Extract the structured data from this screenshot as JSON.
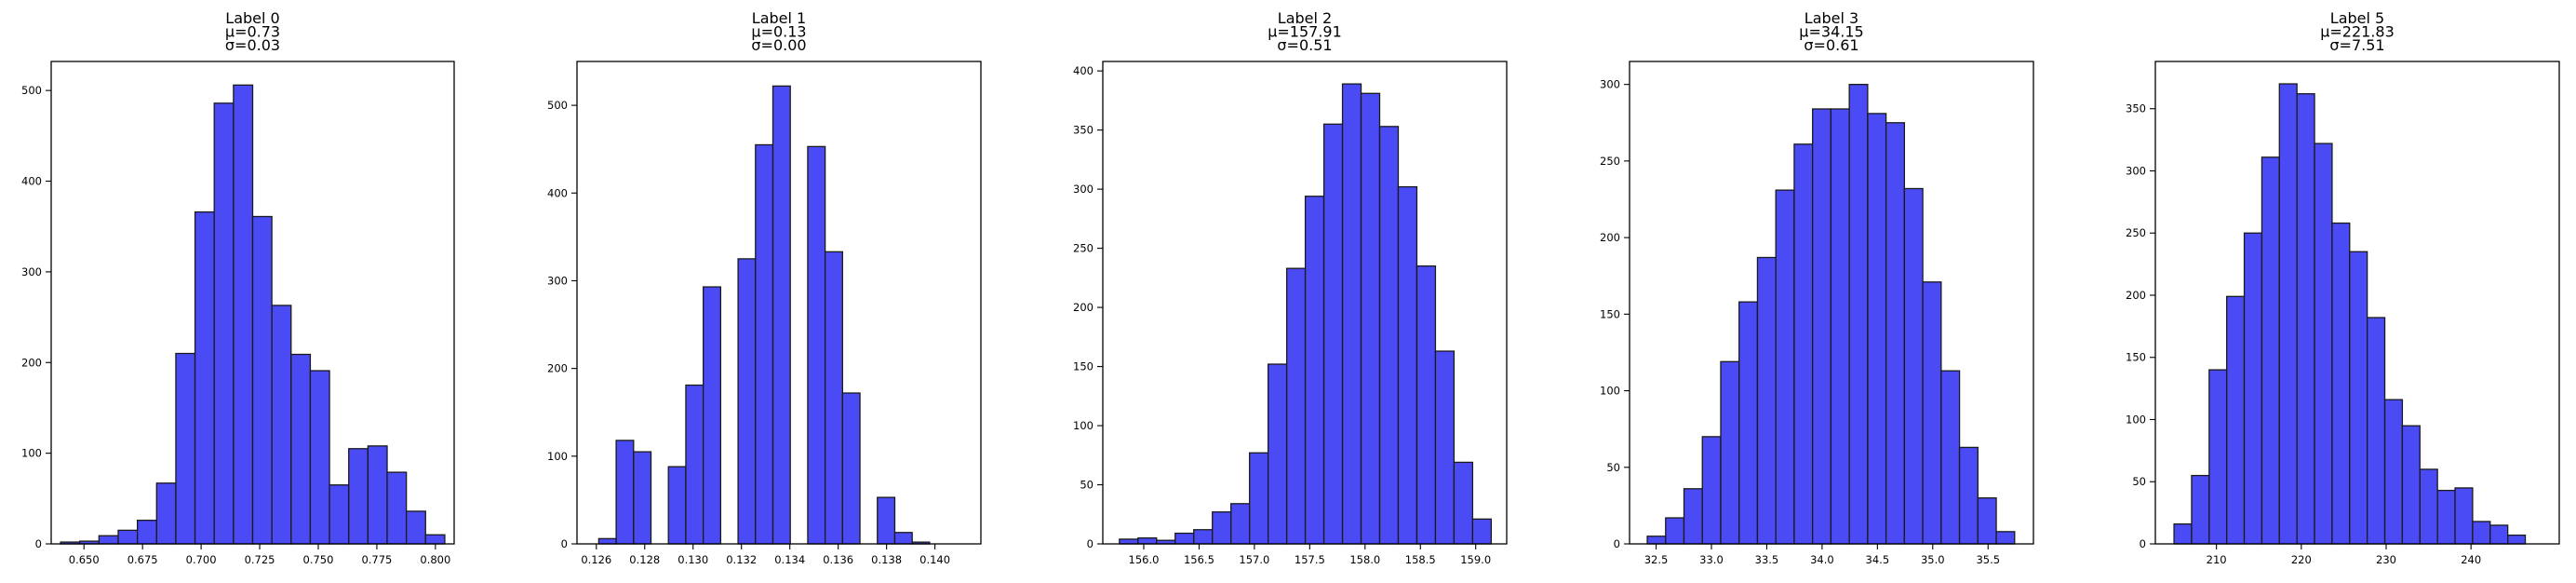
{
  "colors": {
    "bar_fill": "#4b4bf5",
    "bar_edge": "#1a1a1a",
    "axis": "#000000"
  },
  "chart_data": [
    {
      "type": "bar",
      "title_lines": [
        "Label 0",
        "μ=0.73",
        "σ=0.03"
      ],
      "bin_start": 0.64,
      "bin_width": 0.0082,
      "values": [
        2,
        3,
        9,
        15,
        26,
        67,
        210,
        366,
        486,
        506,
        361,
        263,
        209,
        191,
        65,
        105,
        108,
        79,
        36,
        10
      ],
      "xlim": [
        0.636,
        0.808
      ],
      "xticks": [
        0.65,
        0.675,
        0.7,
        0.725,
        0.75,
        0.775,
        0.8
      ],
      "xtick_labels": [
        "0.650",
        "0.675",
        "0.700",
        "0.725",
        "0.750",
        "0.775",
        "0.800"
      ],
      "ylim": [
        0,
        532
      ],
      "yticks": [
        0,
        100,
        200,
        300,
        400,
        500
      ],
      "ytick_labels": [
        "0",
        "100",
        "200",
        "300",
        "400",
        "500"
      ]
    },
    {
      "type": "bar",
      "title_lines": [
        "Label 1",
        "μ=0.13",
        "σ=0.00"
      ],
      "bin_start": 0.1261,
      "bin_width": 0.00072,
      "values": [
        6,
        118,
        105,
        0,
        88,
        181,
        293,
        0,
        325,
        455,
        522,
        0,
        453,
        333,
        172,
        0,
        53,
        13,
        2,
        0
      ],
      "xlim": [
        0.1252,
        0.1419
      ],
      "xticks": [
        0.126,
        0.128,
        0.13,
        0.132,
        0.134,
        0.136,
        0.138,
        0.14
      ],
      "xtick_labels": [
        "0.126",
        "0.128",
        "0.130",
        "0.132",
        "0.134",
        "0.136",
        "0.138",
        "0.140"
      ],
      "ylim": [
        0,
        550
      ],
      "yticks": [
        0,
        100,
        200,
        300,
        400,
        500
      ],
      "ytick_labels": [
        "0",
        "100",
        "200",
        "300",
        "400",
        "500"
      ]
    },
    {
      "type": "bar",
      "title_lines": [
        "Label 2",
        "μ=157.91",
        "σ=0.51"
      ],
      "bin_start": 155.78,
      "bin_width": 0.168,
      "values": [
        4,
        5,
        3,
        9,
        12,
        27,
        34,
        77,
        152,
        233,
        294,
        355,
        389,
        381,
        353,
        302,
        235,
        163,
        69,
        21
      ],
      "xlim": [
        155.63,
        159.28
      ],
      "xticks": [
        156.0,
        156.5,
        157.0,
        157.5,
        158.0,
        158.5,
        159.0
      ],
      "xtick_labels": [
        "156.0",
        "156.5",
        "157.0",
        "157.5",
        "158.0",
        "158.5",
        "159.0"
      ],
      "ylim": [
        0,
        408
      ],
      "yticks": [
        0,
        50,
        100,
        150,
        200,
        250,
        300,
        350,
        400
      ],
      "ytick_labels": [
        "0",
        "50",
        "100",
        "150",
        "200",
        "250",
        "300",
        "350",
        "400"
      ]
    },
    {
      "type": "bar",
      "title_lines": [
        "Label 3",
        "μ=34.15",
        "σ=0.61"
      ],
      "bin_start": 32.42,
      "bin_width": 0.166,
      "values": [
        5,
        17,
        36,
        70,
        119,
        158,
        187,
        231,
        261,
        284,
        284,
        300,
        281,
        275,
        232,
        171,
        113,
        63,
        30,
        8
      ],
      "xlim": [
        32.26,
        35.91
      ],
      "xticks": [
        32.5,
        33.0,
        33.5,
        34.0,
        34.5,
        35.0,
        35.5
      ],
      "xtick_labels": [
        "32.5",
        "33.0",
        "33.5",
        "34.0",
        "34.5",
        "35.0",
        "35.5"
      ],
      "ylim": [
        0,
        315
      ],
      "yticks": [
        0,
        50,
        100,
        150,
        200,
        250,
        300
      ],
      "ytick_labels": [
        "0",
        "50",
        "100",
        "150",
        "200",
        "250",
        "300"
      ]
    },
    {
      "type": "bar",
      "title_lines": [
        "Label 5",
        "μ=221.83",
        "σ=7.51"
      ],
      "bin_start": 205.0,
      "bin_width": 2.07,
      "values": [
        16,
        55,
        140,
        199,
        250,
        311,
        370,
        362,
        322,
        258,
        235,
        182,
        116,
        95,
        60,
        43,
        45,
        18,
        15,
        7
      ],
      "xlim": [
        202.8,
        250.4
      ],
      "xticks": [
        210,
        220,
        230,
        240
      ],
      "xtick_labels": [
        "210",
        "220",
        "230",
        "240"
      ],
      "ylim": [
        0,
        388
      ],
      "yticks": [
        0,
        50,
        100,
        150,
        200,
        250,
        300,
        350
      ],
      "ytick_labels": [
        "0",
        "50",
        "100",
        "150",
        "200",
        "250",
        "300",
        "350"
      ]
    }
  ]
}
